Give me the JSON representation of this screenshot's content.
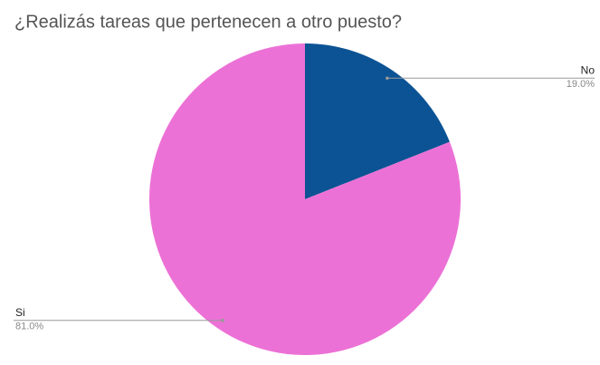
{
  "chart_data": {
    "type": "pie",
    "title": "¿Realizás tareas que pertenecen a otro puesto?",
    "categories": [
      "No",
      "Si"
    ],
    "values": [
      19,
      81
    ],
    "value_labels": [
      "19.0%",
      "81.0%"
    ],
    "colors": [
      "#0b5394",
      "#ec71d6"
    ]
  }
}
